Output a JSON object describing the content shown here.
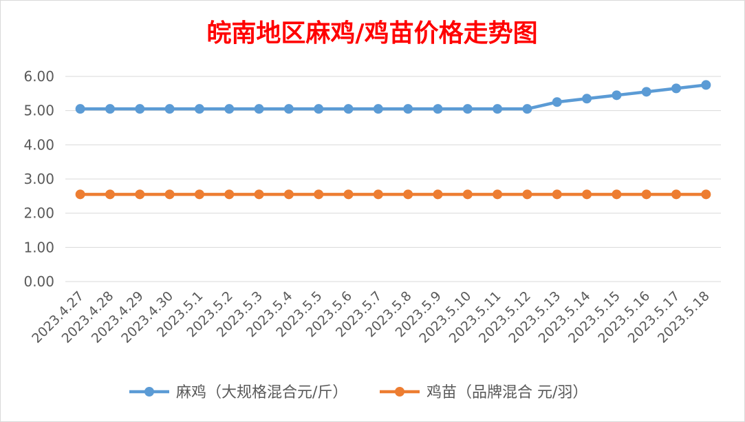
{
  "colors": {
    "title": "#ff0000",
    "gridline": "#d9d9d9",
    "tick_text": "#595959",
    "border": "#d9d9d9",
    "background": "#ffffff"
  },
  "chart_data": {
    "type": "line",
    "title": "皖南地区麻鸡/鸡苗价格走势图",
    "xlabel": "",
    "ylabel": "",
    "ylim": [
      0,
      6
    ],
    "yticks": [
      "0.00",
      "1.00",
      "2.00",
      "3.00",
      "4.00",
      "5.00",
      "6.00"
    ],
    "grid": true,
    "legend_position": "bottom",
    "categories": [
      "2023.4.27",
      "2023.4.28",
      "2023.4.29",
      "2023.4.30",
      "2023.5.1",
      "2023.5.2",
      "2023.5.3",
      "2023.5.4",
      "2023.5.5",
      "2023.5.6",
      "2023.5.7",
      "2023.5.8",
      "2023.5.9",
      "2023.5.10",
      "2023.5.11",
      "2023.5.12",
      "2023.5.13",
      "2023.5.14",
      "2023.5.15",
      "2023.5.16",
      "2023.5.17",
      "2023.5.18"
    ],
    "series": [
      {
        "name": "麻鸡（大规格混合元/斤）",
        "color": "#5b9bd5",
        "values": [
          5.05,
          5.05,
          5.05,
          5.05,
          5.05,
          5.05,
          5.05,
          5.05,
          5.05,
          5.05,
          5.05,
          5.05,
          5.05,
          5.05,
          5.05,
          5.05,
          5.25,
          5.35,
          5.45,
          5.55,
          5.65,
          5.75
        ]
      },
      {
        "name": "鸡苗（品牌混合 元/羽）",
        "color": "#ed7d31",
        "values": [
          2.55,
          2.55,
          2.55,
          2.55,
          2.55,
          2.55,
          2.55,
          2.55,
          2.55,
          2.55,
          2.55,
          2.55,
          2.55,
          2.55,
          2.55,
          2.55,
          2.55,
          2.55,
          2.55,
          2.55,
          2.55,
          2.55
        ]
      }
    ]
  }
}
